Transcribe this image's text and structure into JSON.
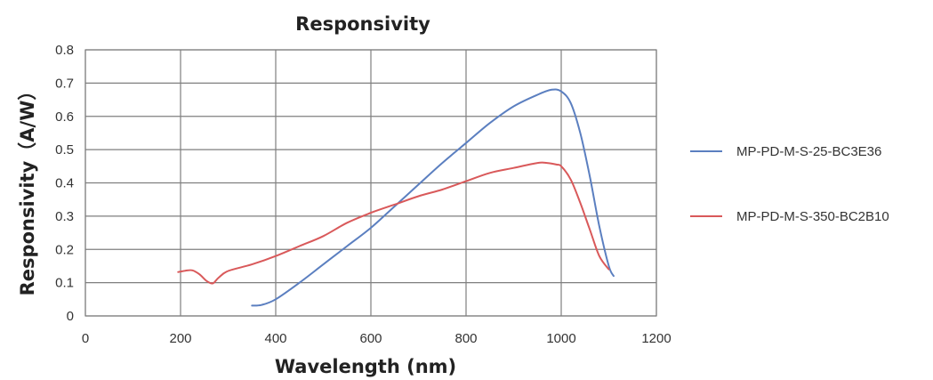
{
  "chart_data": {
    "type": "line",
    "title": "Responsivity",
    "xlabel": "Wavelength (nm)",
    "ylabel": "Responsivity（A/W）",
    "xlim": [
      0,
      1200
    ],
    "ylim": [
      0,
      0.8
    ],
    "x_ticks": [
      0,
      200,
      400,
      600,
      800,
      1000,
      1200
    ],
    "y_ticks": [
      0,
      0.1,
      0.2,
      0.3,
      0.4,
      0.5,
      0.6,
      0.7,
      0.8
    ],
    "x_tick_labels": [
      "0",
      "200",
      "400",
      "600",
      "800",
      "1000",
      "1200"
    ],
    "y_tick_labels": [
      "0",
      "0.1",
      "0.2",
      "0.3",
      "0.4",
      "0.5",
      "0.6",
      "0.7",
      "0.8"
    ],
    "grid": true,
    "legend_position": "right",
    "series": [
      {
        "name": "MP-PD-M-S-25-BC3E36",
        "color": "#5b7fc0",
        "x": [
          350,
          370,
          400,
          450,
          500,
          550,
          600,
          650,
          700,
          750,
          800,
          850,
          900,
          950,
          980,
          1000,
          1020,
          1040,
          1060,
          1080,
          1100,
          1110
        ],
        "y": [
          0.031,
          0.033,
          0.05,
          0.1,
          0.155,
          0.21,
          0.265,
          0.33,
          0.395,
          0.46,
          0.52,
          0.58,
          0.63,
          0.665,
          0.68,
          0.675,
          0.64,
          0.55,
          0.42,
          0.27,
          0.15,
          0.12
        ]
      },
      {
        "name": "MP-PD-M-S-350-BC2B10",
        "color": "#d9595a",
        "x": [
          195,
          210,
          225,
          240,
          255,
          268,
          280,
          300,
          350,
          400,
          450,
          500,
          550,
          600,
          650,
          700,
          750,
          800,
          850,
          900,
          950,
          970,
          990,
          1000,
          1020,
          1040,
          1060,
          1080,
          1100
        ],
        "y": [
          0.132,
          0.136,
          0.137,
          0.125,
          0.105,
          0.098,
          0.115,
          0.135,
          0.155,
          0.18,
          0.21,
          0.24,
          0.28,
          0.31,
          0.335,
          0.36,
          0.38,
          0.405,
          0.43,
          0.445,
          0.46,
          0.46,
          0.455,
          0.45,
          0.41,
          0.34,
          0.26,
          0.18,
          0.14
        ]
      }
    ]
  }
}
